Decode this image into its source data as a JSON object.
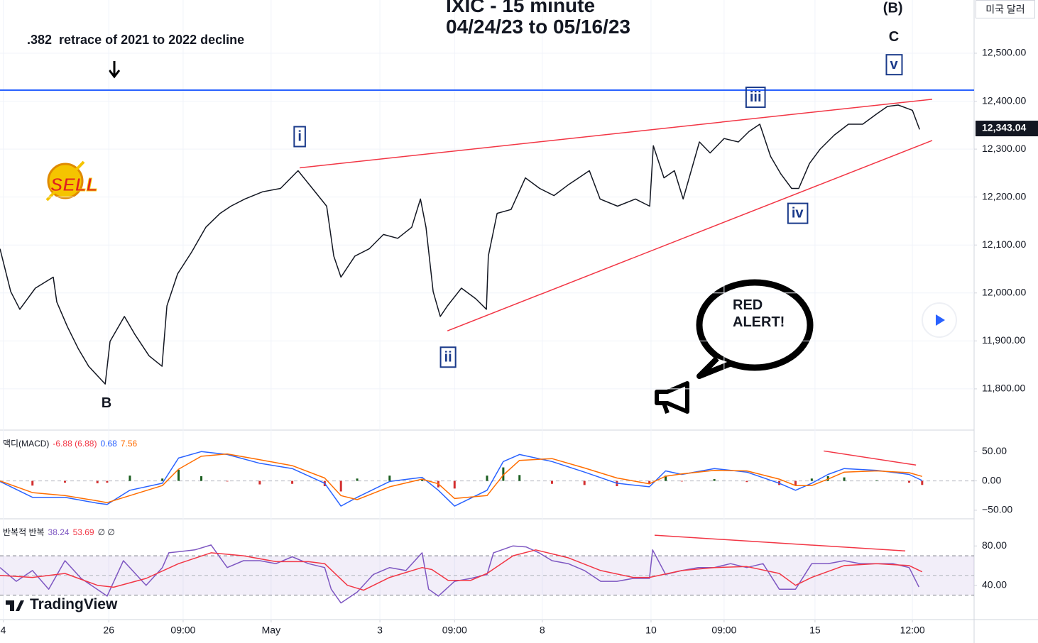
{
  "title": "IXIC - 15 minute",
  "subtitle": "04/24/23 to 05/16/23",
  "note": ".382  retrace of 2021 to 2022 decline",
  "currency": "미국 달러",
  "callout": "RED ALERT!",
  "watermark": "TradingView",
  "chart_data": [
    {
      "type": "line",
      "xlim": [
        0,
        300
      ],
      "ylim": [
        11714,
        12611
      ],
      "grid": true,
      "yticks": [
        {
          "value": 11800,
          "label": "11,800.00"
        },
        {
          "value": 11900,
          "label": "11,900.00"
        },
        {
          "value": 12000,
          "label": "12,000.00"
        },
        {
          "value": 12100,
          "label": "12,100.00"
        },
        {
          "value": 12200,
          "label": "12,200.00"
        },
        {
          "value": 12300,
          "label": "12,300.00"
        },
        {
          "value": 12400,
          "label": "12,400.00"
        },
        {
          "value": 12500,
          "label": "12,500.00"
        }
      ],
      "xticks": [
        {
          "value": 1,
          "label": "4"
        },
        {
          "value": 33.5,
          "label": "26"
        },
        {
          "value": 56.4,
          "label": "09:00"
        },
        {
          "value": 83.5,
          "label": "May"
        },
        {
          "value": 117,
          "label": "3"
        },
        {
          "value": 140,
          "label": "09:00"
        },
        {
          "value": 167,
          "label": "8"
        },
        {
          "value": 200.5,
          "label": "10"
        },
        {
          "value": 223,
          "label": "09:00"
        },
        {
          "value": 251,
          "label": "15"
        },
        {
          "value": 281,
          "label": "12:00"
        }
      ],
      "last_value": {
        "value": 12343.04,
        "label": "12,343.04"
      },
      "series": [
        {
          "color": "#131722",
          "x": [
            0,
            3.3,
            6.1,
            10.9,
            16.4,
            17.5,
            20.8,
            24.1,
            27.3,
            32.4,
            33.9,
            38.3,
            41.5,
            45.9,
            49.9,
            51.4,
            54.7,
            59.0,
            63.4,
            67.8,
            71.1,
            75.4,
            80.9,
            86.4,
            91.8,
            96.2,
            100.6,
            102.8,
            105.0,
            109.3,
            113.7,
            118.1,
            122.5,
            126.8,
            129.5,
            131.2,
            133.4,
            135.6,
            137.8,
            142.1,
            146.5,
            149.8,
            150.4,
            153.1,
            157.4,
            161.8,
            166.2,
            170.6,
            174.9,
            181.5,
            184.8,
            190.2,
            195.7,
            200.1,
            201.2,
            204.5,
            207.7,
            210.4,
            215.4,
            218.7,
            223.0,
            227.4,
            230.7,
            234.0,
            237.3,
            240.5,
            243.8,
            246.0,
            249.3,
            252.6,
            256.9,
            261.3,
            265.7,
            270.1,
            273.3,
            276.6,
            281.0,
            283.2
          ],
          "values": [
            12092,
            12003,
            11966,
            12010,
            12033,
            11981,
            11929,
            11884,
            11847,
            11810,
            11899,
            11951,
            11914,
            11869,
            11847,
            11973,
            12040,
            12085,
            12137,
            12166,
            12181,
            12196,
            12211,
            12218,
            12255,
            12218,
            12181,
            12077,
            12033,
            12077,
            12092,
            12122,
            12114,
            12137,
            12196,
            12137,
            12003,
            11951,
            11973,
            12010,
            11988,
            11966,
            12077,
            12166,
            12174,
            12240,
            12218,
            12203,
            12225,
            12255,
            12196,
            12181,
            12196,
            12181,
            12307,
            12240,
            12255,
            12196,
            12315,
            12292,
            12322,
            12315,
            12337,
            12352,
            12285,
            12248,
            12218,
            12218,
            12270,
            12300,
            12329,
            12352,
            12352,
            12374,
            12389,
            12392,
            12381,
            12341
          ]
        }
      ],
      "hline": {
        "value": 12423,
        "color": "#2962ff"
      },
      "lines": [
        {
          "x": [
            92.3,
            287.1
          ],
          "y": [
            12261,
            12404
          ],
          "color": "#f23645"
        },
        {
          "x": [
            137.8,
            287.1
          ],
          "y": [
            11921,
            12318
          ],
          "color": "#f23645"
        }
      ],
      "annotations": [
        {
          "text": "i",
          "x": 92.3,
          "y": 12325,
          "boxed": true
        },
        {
          "text": "ii",
          "x": 138.0,
          "y": 11865,
          "boxed": true
        },
        {
          "text": "iii",
          "x": 232.7,
          "y": 12407,
          "boxed": true
        },
        {
          "text": "iv",
          "x": 245.6,
          "y": 12165,
          "boxed": true
        },
        {
          "text": "v",
          "x": 275.3,
          "y": 12475,
          "boxed": true
        },
        {
          "text": "B",
          "x": 32.8,
          "y": 11769,
          "boxed": false
        },
        {
          "text": "C",
          "x": 275.3,
          "y": 12533,
          "boxed": false
        },
        {
          "text": "(B)",
          "x": 275.0,
          "y": 12593,
          "boxed": false
        },
        {
          "text": "SELL",
          "x": 22.8,
          "y": 12223,
          "boxed": false,
          "color": "#e02020"
        }
      ]
    },
    {
      "type": "line",
      "xlim": [
        0,
        300
      ],
      "ylim": [
        -64.6,
        86.6
      ],
      "yticks": [
        {
          "value": 50,
          "label": "50.00"
        },
        {
          "value": 0,
          "label": "0.00"
        },
        {
          "value": -50,
          "label": "−50.00"
        }
      ],
      "zero_line": 0,
      "legend": [
        {
          "text": "맥디(MACD)",
          "color": "#131722"
        },
        {
          "text": "-6.88 (6.88)",
          "color": "#f23645"
        },
        {
          "text": "0.68",
          "color": "#2962ff"
        },
        {
          "text": "7.56",
          "color": "#ff6d00"
        }
      ],
      "series": [
        {
          "style": "histogram",
          "color": "#1b5e20",
          "negative_color": "#d32f2f",
          "x": [
            0,
            10,
            20,
            30,
            33,
            40,
            50,
            55,
            62,
            70,
            80,
            90,
            100,
            105,
            110,
            120,
            130,
            135,
            140,
            150,
            155,
            160,
            170,
            180,
            190,
            200,
            205,
            210,
            220,
            230,
            240,
            245,
            250,
            255,
            260,
            270,
            280,
            284
          ],
          "values": [
            -1,
            -8,
            -3,
            -4,
            -3,
            9,
            4,
            19,
            8,
            -1,
            -6,
            -5,
            -9,
            -18,
            4,
            9,
            3,
            -11,
            -13,
            9,
            23,
            10,
            -5,
            -7,
            -9,
            -5,
            9,
            -1,
            3,
            -2,
            -7,
            -8,
            4,
            8,
            6,
            1,
            -3,
            -6.88
          ]
        },
        {
          "color": "#2962ff",
          "x": [
            0,
            10,
            20,
            30,
            33,
            40,
            50,
            55,
            62,
            70,
            80,
            90,
            100,
            105,
            110,
            120,
            130,
            135,
            140,
            150,
            155,
            160,
            170,
            180,
            190,
            200,
            205,
            210,
            220,
            230,
            240,
            245,
            250,
            255,
            260,
            270,
            280,
            284
          ],
          "values": [
            -1,
            -28,
            -28,
            -38,
            -40,
            -16,
            -4,
            39,
            50,
            45,
            30,
            21,
            -4,
            -43,
            -28,
            -1,
            6,
            -16,
            -43,
            -16,
            33,
            45,
            33,
            15,
            -4,
            -10,
            17,
            11,
            21,
            15,
            -4,
            -16,
            -4,
            11,
            21,
            18,
            11,
            0.68
          ]
        },
        {
          "color": "#ff6d00",
          "x": [
            0,
            10,
            20,
            30,
            33,
            40,
            50,
            55,
            62,
            70,
            80,
            90,
            100,
            105,
            110,
            120,
            130,
            135,
            140,
            150,
            155,
            160,
            170,
            180,
            190,
            200,
            205,
            210,
            220,
            230,
            240,
            245,
            250,
            255,
            260,
            270,
            280,
            284
          ],
          "values": [
            0,
            -20,
            -25,
            -34,
            -37,
            -25,
            -8,
            20,
            42,
            46,
            36,
            26,
            5,
            -25,
            -32,
            -10,
            3,
            -5,
            -30,
            -25,
            10,
            35,
            38,
            22,
            5,
            -5,
            8,
            12,
            18,
            17,
            3,
            -8,
            -8,
            3,
            15,
            17,
            14,
            7.56
          ]
        }
      ],
      "lines": [
        {
          "x": [
            253.7,
            282.1
          ],
          "y": [
            51,
            27
          ],
          "color": "#f23645"
        }
      ]
    },
    {
      "type": "line",
      "xlim": [
        0,
        300
      ],
      "ylim": [
        5.1,
        107.6
      ],
      "yticks": [
        {
          "value": 80,
          "label": "80.00"
        },
        {
          "value": 40,
          "label": "40.00"
        }
      ],
      "band": [
        30,
        70
      ],
      "midline": 50,
      "legend": [
        {
          "text": "반복적 반복",
          "color": "#131722"
        },
        {
          "text": "38.24",
          "color": "#7e57c2"
        },
        {
          "text": "53.69",
          "color": "#f23645"
        },
        {
          "text": "∅ ∅",
          "color": "#131722"
        }
      ],
      "series": [
        {
          "color": "#7e57c2",
          "x": [
            0,
            5,
            10,
            15,
            20,
            25,
            33,
            38,
            45,
            50,
            52,
            60,
            65,
            70,
            75,
            80,
            85,
            90,
            95,
            100,
            102,
            105,
            110,
            115,
            120,
            125,
            130,
            132,
            135,
            140,
            145,
            150,
            152,
            158,
            162,
            166,
            170,
            175,
            180,
            185,
            190,
            195,
            200,
            201,
            205,
            210,
            215,
            220,
            225,
            230,
            235,
            240,
            245,
            250,
            255,
            260,
            265,
            270,
            275,
            280,
            283
          ],
          "values": [
            58,
            44,
            55,
            36,
            65,
            47,
            29,
            65,
            40,
            58,
            73,
            76,
            81,
            58,
            65,
            65,
            62,
            69,
            62,
            58,
            36,
            22,
            33,
            51,
            58,
            55,
            73,
            36,
            29,
            44,
            47,
            51,
            73,
            80,
            79,
            73,
            65,
            62,
            55,
            44,
            44,
            47,
            47,
            76,
            51,
            55,
            58,
            58,
            62,
            58,
            62,
            36,
            36,
            62,
            62,
            65,
            62,
            62,
            62,
            58,
            38.24
          ]
        },
        {
          "color": "#f23645",
          "x": [
            0,
            10,
            20,
            30,
            35,
            45,
            55,
            65,
            75,
            85,
            95,
            100,
            107,
            112,
            120,
            130,
            133,
            138,
            145,
            150,
            158,
            165,
            175,
            185,
            195,
            200,
            210,
            220,
            230,
            240,
            245,
            250,
            260,
            270,
            280,
            284
          ],
          "values": [
            50,
            48,
            52,
            40,
            38,
            47,
            62,
            73,
            70,
            64,
            64,
            62,
            40,
            35,
            48,
            58,
            56,
            45,
            45,
            52,
            70,
            76,
            68,
            55,
            48,
            48,
            55,
            58,
            59,
            52,
            40,
            48,
            60,
            62,
            60,
            53.69
          ]
        }
      ],
      "lines": [
        {
          "x": [
            201.6,
            278.8
          ],
          "y": [
            90.9,
            74.9
          ],
          "color": "#f23645"
        }
      ]
    }
  ]
}
